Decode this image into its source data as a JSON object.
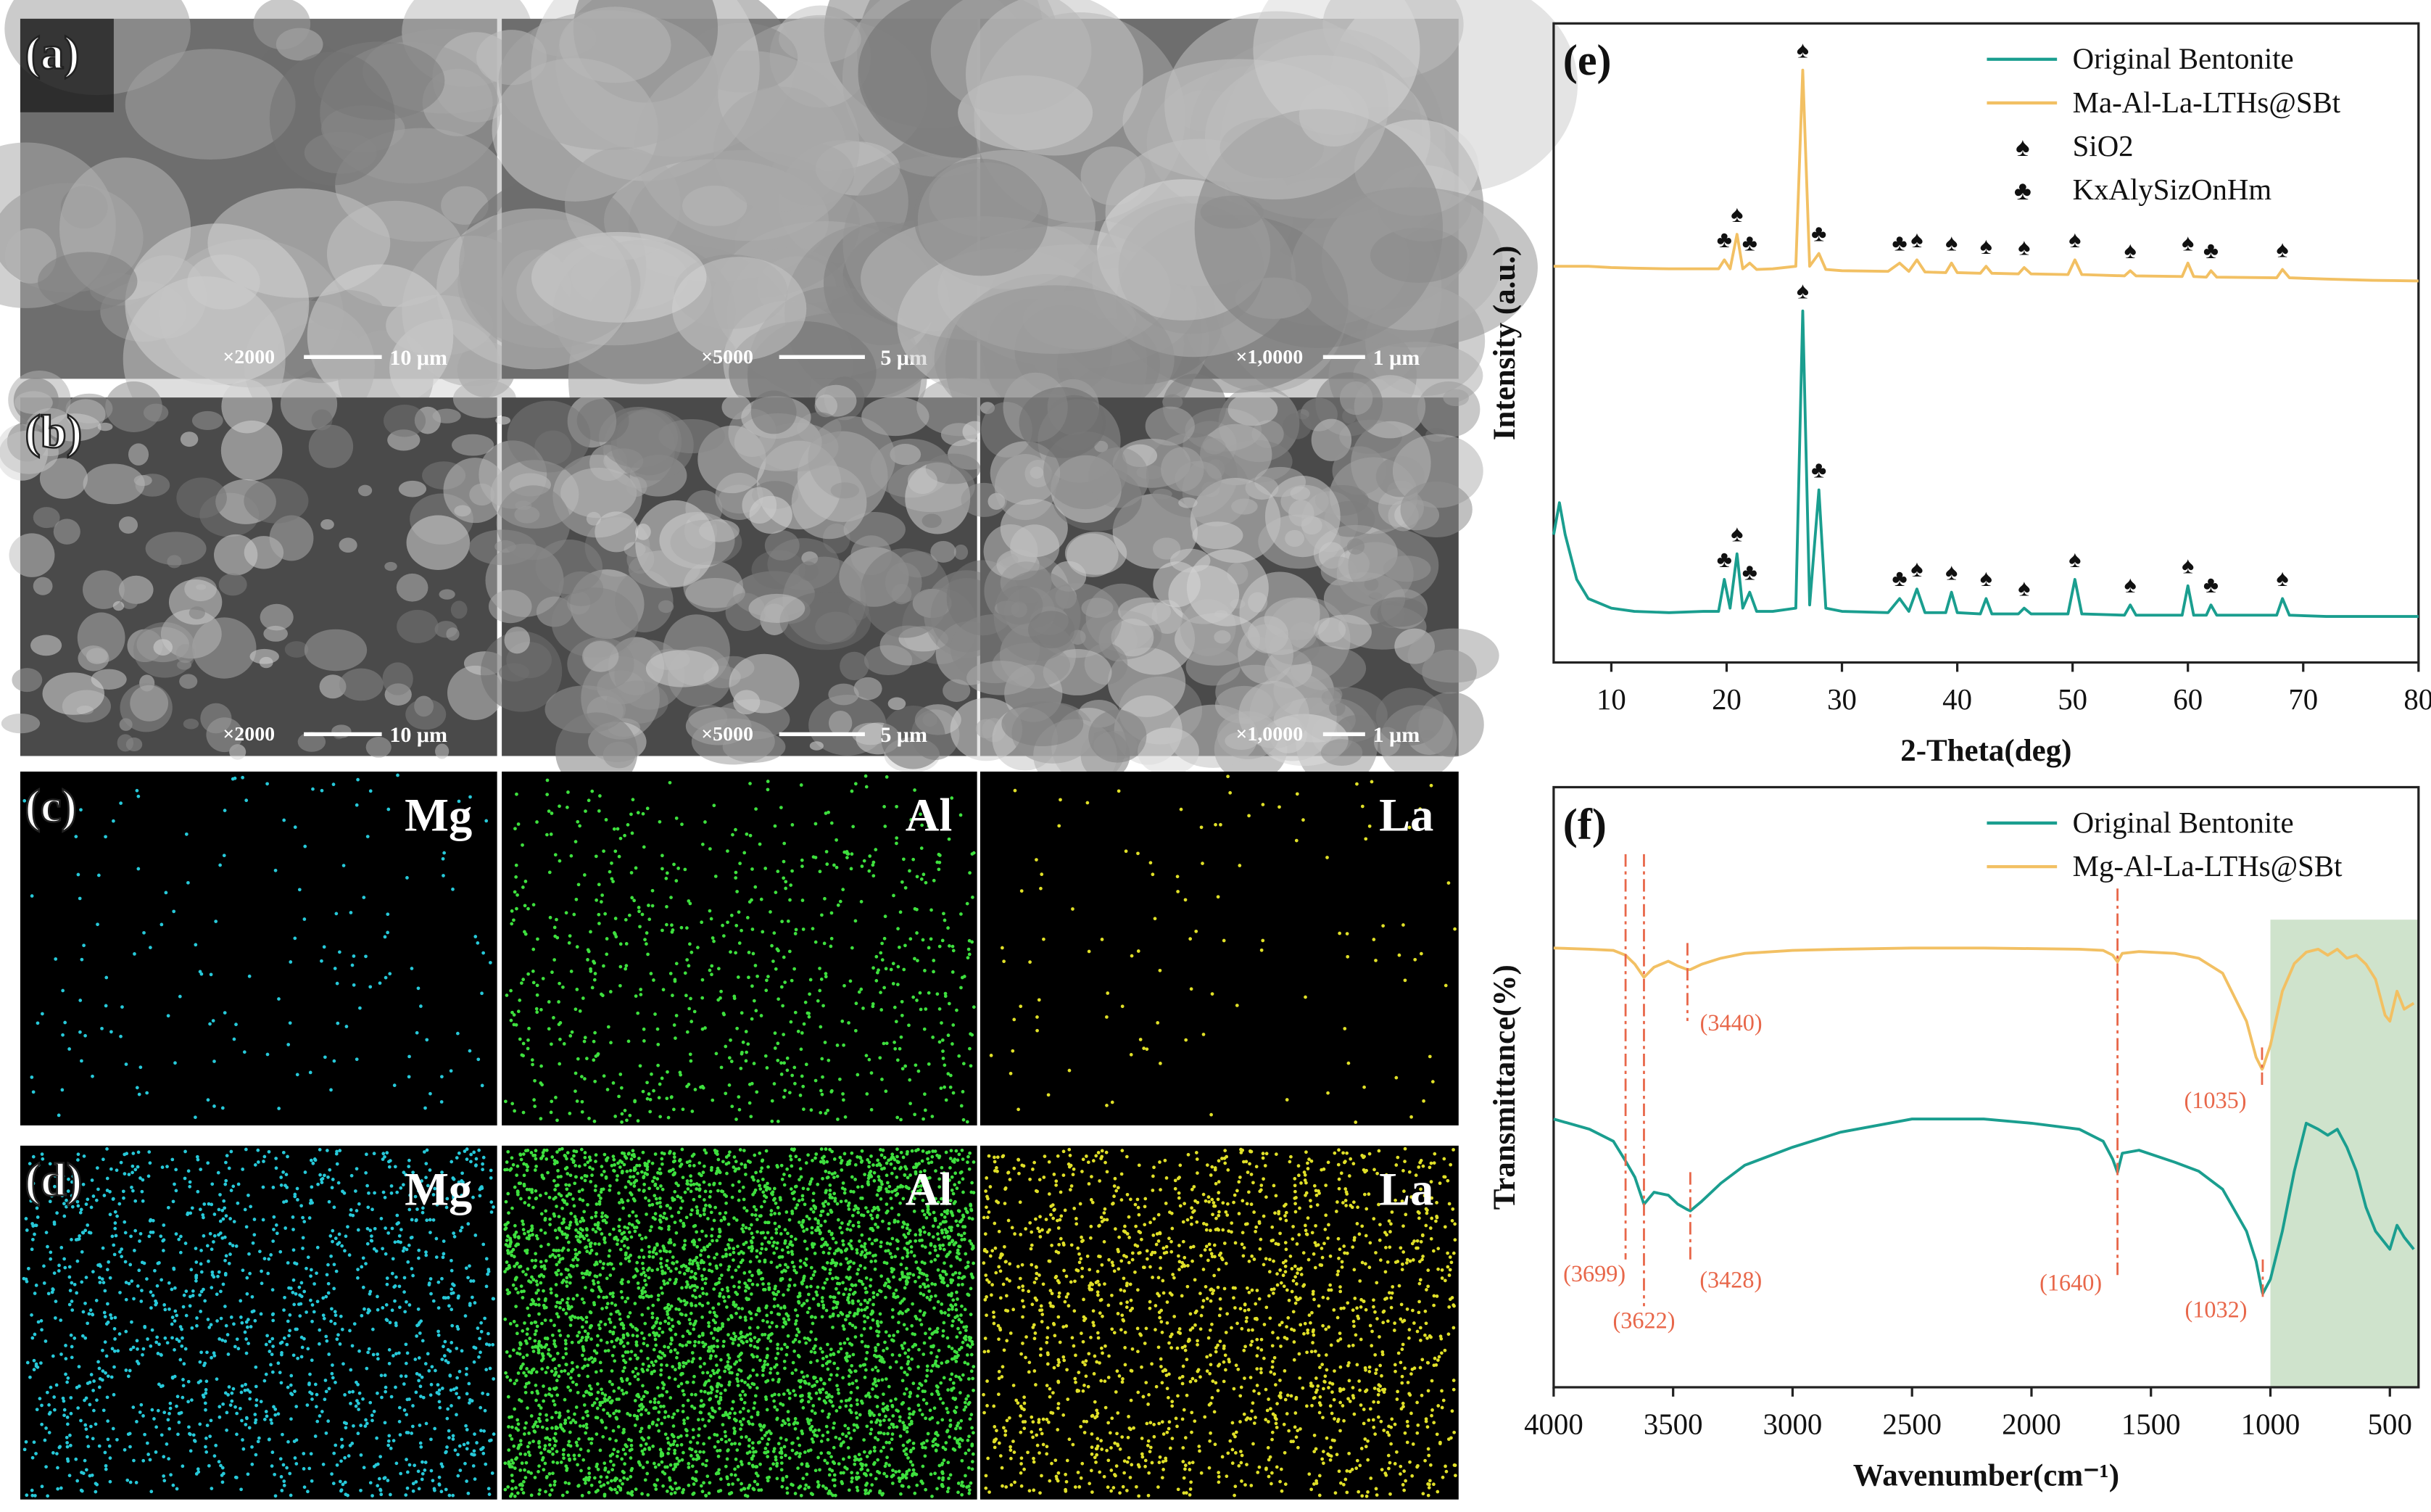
{
  "panels": {
    "a": {
      "label": "(a)",
      "images": [
        {
          "magnification": "×2000",
          "scale": "10 μm"
        },
        {
          "magnification": "×5000",
          "scale": "5 μm"
        },
        {
          "magnification": "×1,0000",
          "scale": "1 μm"
        }
      ]
    },
    "b": {
      "label": "(b)",
      "images": [
        {
          "magnification": "×2000",
          "scale": "10 μm"
        },
        {
          "magnification": "×5000",
          "scale": "5 μm"
        },
        {
          "magnification": "×1,0000",
          "scale": "1 μm"
        }
      ]
    },
    "c": {
      "label": "(c)",
      "elements": [
        "Mg",
        "Al",
        "La"
      ]
    },
    "d": {
      "label": "(d)",
      "elements": [
        "Mg",
        "Al",
        "La"
      ]
    }
  },
  "chart_data": [
    {
      "type": "line",
      "panel_label": "(e)",
      "x_label": "2-Theta(deg)",
      "y_label": "Intensity (a.u.)",
      "xlim": [
        5,
        80
      ],
      "ylim": [
        0,
        100
      ],
      "xticks": [
        10,
        20,
        30,
        40,
        50,
        60,
        70,
        80
      ],
      "x": [
        5,
        5.5,
        6,
        7,
        8,
        10,
        12,
        15,
        18,
        19.3,
        19.8,
        20.3,
        20.9,
        21.4,
        22,
        22.6,
        24,
        26,
        26.6,
        27.2,
        28,
        28.6,
        30,
        34,
        35,
        35.8,
        36.5,
        37.2,
        39,
        39.5,
        40,
        42,
        42.5,
        43,
        45.3,
        45.8,
        46.4,
        49.6,
        50.2,
        50.8,
        54.5,
        55,
        55.5,
        59.5,
        60,
        60.5,
        61.6,
        62,
        62.5,
        67.7,
        68.2,
        68.8,
        72,
        76,
        80
      ],
      "series": [
        {
          "name": "Original Bentonite",
          "color": "#1a9e8f",
          "values": [
            20,
            25,
            20,
            13,
            10,
            8.5,
            8,
            7.8,
            8,
            8,
            13,
            8.5,
            17,
            8.5,
            11,
            8,
            8,
            8.5,
            55,
            9,
            27,
            8.5,
            8,
            7.8,
            10,
            8,
            11.5,
            7.8,
            7.8,
            11,
            7.8,
            7.6,
            10,
            7.6,
            7.6,
            8.5,
            7.6,
            7.6,
            13,
            7.6,
            7.4,
            9,
            7.4,
            7.4,
            12,
            7.4,
            7.4,
            9,
            7.4,
            7.4,
            10,
            7.4,
            7.2,
            7.2,
            7.2
          ],
          "peaks": [
            {
              "x": 19.8,
              "label": "♣"
            },
            {
              "x": 20.9,
              "label": "♠"
            },
            {
              "x": 22,
              "label": "♣"
            },
            {
              "x": 26.6,
              "label": "♠"
            },
            {
              "x": 28,
              "label": "♣"
            },
            {
              "x": 35,
              "label": "♣"
            },
            {
              "x": 36.5,
              "label": "♠"
            },
            {
              "x": 39.5,
              "label": "♠"
            },
            {
              "x": 42.5,
              "label": "♠"
            },
            {
              "x": 45.8,
              "label": "♠"
            },
            {
              "x": 50.2,
              "label": "♠"
            },
            {
              "x": 55,
              "label": "♠"
            },
            {
              "x": 60,
              "label": "♠"
            },
            {
              "x": 62,
              "label": "♣"
            },
            {
              "x": 68.2,
              "label": "♠"
            }
          ]
        },
        {
          "name": "Ma-Al-La-LTHs@SBt",
          "color": "#f2c063",
          "values": [
            62,
            62,
            62,
            62,
            62,
            61.8,
            61.7,
            61.6,
            61.6,
            61.6,
            63,
            61.6,
            67,
            61.6,
            62.5,
            61.5,
            61.6,
            62,
            92.7,
            62,
            64,
            61.5,
            61.3,
            61.2,
            62.5,
            61.2,
            63,
            61.1,
            61,
            62.5,
            61,
            60.9,
            62,
            60.9,
            60.8,
            61.8,
            60.8,
            60.7,
            63,
            60.7,
            60.5,
            61.3,
            60.5,
            60.4,
            62.5,
            60.4,
            60.3,
            61.3,
            60.3,
            60.2,
            61.5,
            60.2,
            60,
            59.8,
            59.7
          ],
          "peaks": [
            {
              "x": 19.8,
              "label": "♣"
            },
            {
              "x": 20.9,
              "label": "♠"
            },
            {
              "x": 22,
              "label": "♣"
            },
            {
              "x": 26.6,
              "label": "♠"
            },
            {
              "x": 28,
              "label": "♣"
            },
            {
              "x": 35,
              "label": "♣"
            },
            {
              "x": 36.5,
              "label": "♠"
            },
            {
              "x": 39.5,
              "label": "♠"
            },
            {
              "x": 42.5,
              "label": "♠"
            },
            {
              "x": 45.8,
              "label": "♠"
            },
            {
              "x": 50.2,
              "label": "♠"
            },
            {
              "x": 55,
              "label": "♠"
            },
            {
              "x": 60,
              "label": "♠"
            },
            {
              "x": 62,
              "label": "♣"
            },
            {
              "x": 68.2,
              "label": "♠"
            }
          ]
        }
      ],
      "legend_symbols": [
        {
          "symbol": "♠",
          "label": "SiO2"
        },
        {
          "symbol": "♣",
          "label": "KxAlySizOnHm"
        }
      ]
    },
    {
      "type": "line",
      "panel_label": "(f)",
      "x_label": "Wavenumber(cm⁻¹)",
      "y_label": "Transmittance(%)",
      "xlim": [
        4000,
        380
      ],
      "ylim": [
        0,
        100
      ],
      "xticks": [
        4000,
        3500,
        3000,
        2500,
        2000,
        1500,
        1000,
        500
      ],
      "highlight": {
        "range": [
          1000,
          380
        ],
        "color": "#cfe3cc"
      },
      "x": [
        4000,
        3850,
        3750,
        3699,
        3660,
        3622,
        3580,
        3520,
        3480,
        3440,
        3428,
        3380,
        3300,
        3200,
        3000,
        2800,
        2500,
        2200,
        2000,
        1800,
        1700,
        1660,
        1640,
        1620,
        1550,
        1400,
        1300,
        1200,
        1100,
        1060,
        1035,
        1032,
        1000,
        950,
        900,
        850,
        800,
        760,
        720,
        680,
        640,
        600,
        560,
        520,
        500,
        470,
        440,
        400
      ],
      "series": [
        {
          "name": "Original Bentonite",
          "color": "#1a9e8f",
          "values": [
            44.7,
            43,
            41,
            37.7,
            35,
            30.5,
            32.5,
            32,
            30.5,
            29.6,
            29.4,
            31,
            34,
            37,
            40,
            42.5,
            44.7,
            44.7,
            44,
            43,
            41,
            38,
            35.8,
            39,
            39.5,
            37.5,
            36,
            33,
            26,
            21,
            16,
            15.6,
            18,
            26,
            36,
            44,
            43,
            42,
            43,
            40,
            36,
            30,
            26,
            24,
            23,
            27,
            25,
            23
          ]
        },
        {
          "name": "Mg-Al-La-LTHs@SBt",
          "color": "#f2c063",
          "values": [
            73.2,
            73,
            72.8,
            72,
            70.5,
            68.3,
            70,
            71,
            70.2,
            69.6,
            69.6,
            70.5,
            71.5,
            72.3,
            72.8,
            73,
            73.2,
            73.2,
            73.1,
            73,
            72.8,
            72,
            70.9,
            72.3,
            72.6,
            72.3,
            71.5,
            69,
            61,
            55,
            53,
            53.2,
            57,
            66,
            70.6,
            72.5,
            73,
            72,
            73,
            71.5,
            72,
            70.5,
            68,
            62,
            61,
            66,
            63,
            64
          ]
        }
      ],
      "annotations": [
        {
          "x": 3699,
          "label": "(3699)"
        },
        {
          "x": 3622,
          "label": "(3622)"
        },
        {
          "x": 3440,
          "label": "(3440)"
        },
        {
          "x": 3428,
          "label": "(3428)"
        },
        {
          "x": 1640,
          "label": "(1640)"
        },
        {
          "x": 1035,
          "label": "(1035)"
        },
        {
          "x": 1032,
          "label": "(1032)"
        }
      ]
    }
  ]
}
